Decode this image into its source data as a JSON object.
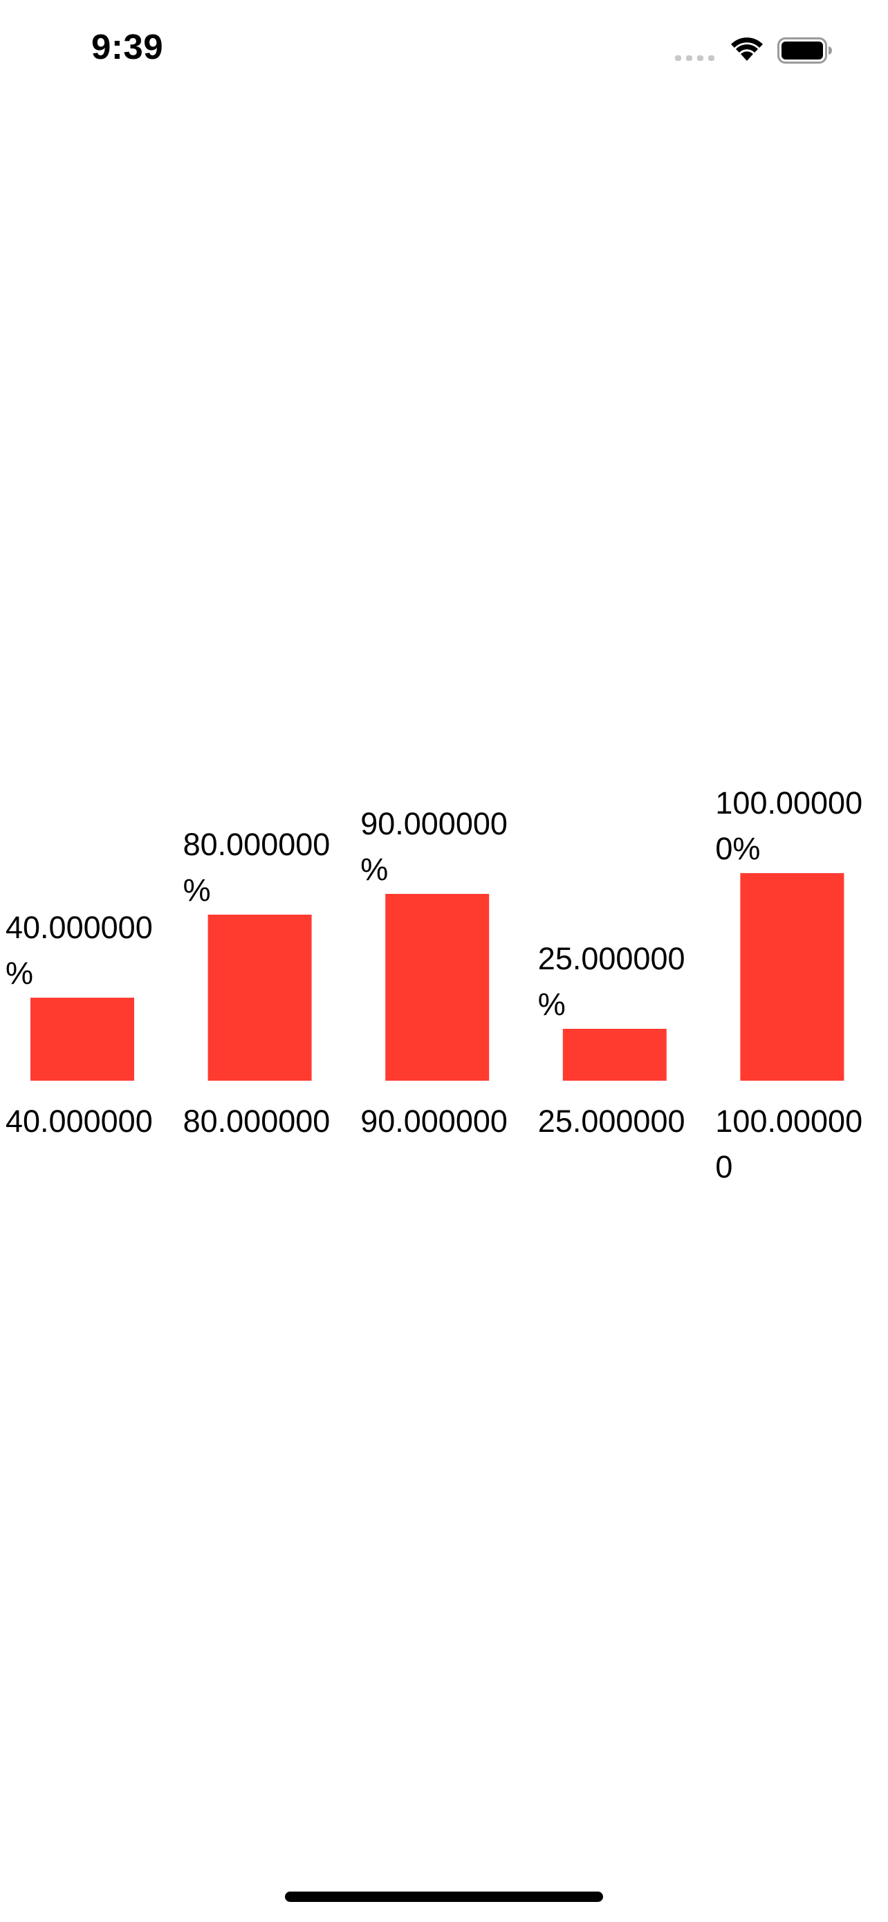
{
  "status_bar": {
    "time": "9:39"
  },
  "icons": {
    "signal": "cellular-signal-icon",
    "wifi": "wifi-icon",
    "battery": "battery-icon"
  },
  "colors": {
    "bar": "#ff3b30",
    "text": "#000000",
    "background": "#ffffff"
  },
  "chart_data": {
    "type": "bar",
    "categories": [
      "40.000000",
      "80.000000",
      "90.000000",
      "25.000000",
      "100.000000"
    ],
    "values": [
      40,
      80,
      90,
      25,
      100
    ],
    "data_labels": [
      "40.000000%",
      "80.000000%",
      "90.000000%",
      "25.000000%",
      "100.000000%"
    ],
    "title": "",
    "xlabel": "",
    "ylabel": "",
    "ylim": [
      0,
      100
    ],
    "grid": false,
    "legend": "none"
  }
}
